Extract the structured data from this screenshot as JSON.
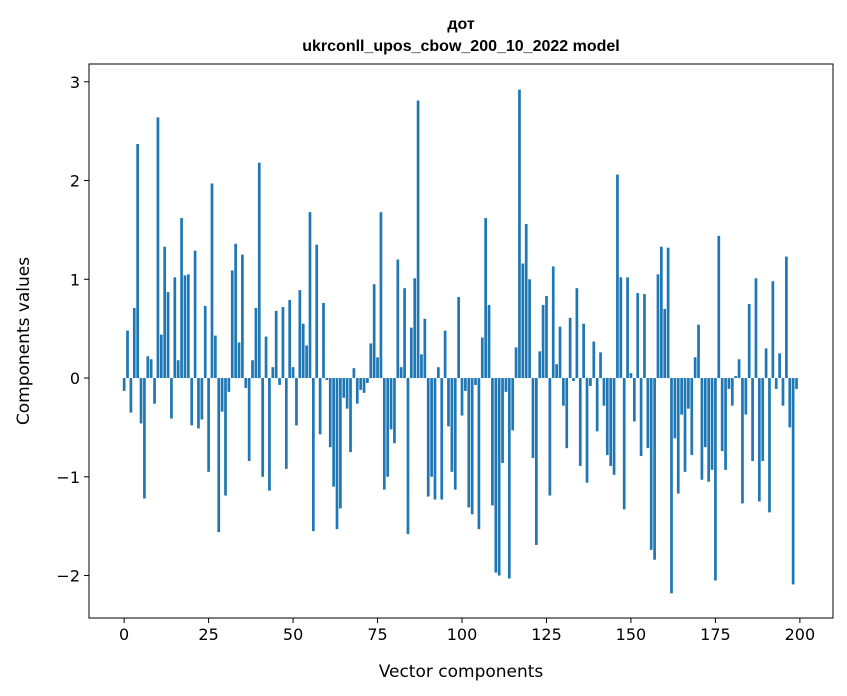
{
  "chart_data": {
    "type": "bar",
    "title_line1": "дот",
    "title_line2": "ukrconll_upos_cbow_200_10_2022 model",
    "xlabel": "Vector components",
    "ylabel": "Components values",
    "xlim": [
      -10.4,
      209.8
    ],
    "ylim": [
      -2.43,
      3.18
    ],
    "xticks": [
      0,
      25,
      50,
      75,
      100,
      125,
      150,
      175,
      200
    ],
    "yticks": [
      -2,
      -1,
      0,
      1,
      2,
      3
    ],
    "ytick_labels": [
      "−2",
      "−1",
      "0",
      "1",
      "2",
      "3"
    ],
    "grid": false,
    "color": "#1f77b4",
    "values": [
      -0.13,
      0.48,
      -0.35,
      0.71,
      2.37,
      -0.46,
      -1.22,
      0.22,
      0.19,
      -0.26,
      2.64,
      0.44,
      1.33,
      0.87,
      -0.41,
      1.02,
      0.18,
      1.62,
      1.04,
      1.05,
      -0.48,
      1.29,
      -0.51,
      -0.42,
      0.73,
      -0.95,
      1.97,
      0.43,
      -1.56,
      -0.34,
      -1.19,
      -0.14,
      1.09,
      1.36,
      0.36,
      1.25,
      -0.1,
      -0.84,
      0.18,
      0.71,
      2.18,
      -1.0,
      0.42,
      -1.14,
      0.11,
      0.68,
      -0.07,
      0.72,
      -0.92,
      0.79,
      0.11,
      -0.48,
      0.89,
      0.55,
      0.33,
      1.68,
      -1.55,
      1.35,
      -0.57,
      0.76,
      -0.02,
      -0.7,
      -1.1,
      -1.53,
      -1.32,
      -0.2,
      -0.31,
      -0.75,
      0.1,
      -0.26,
      -0.12,
      -0.15,
      -0.05,
      0.35,
      0.95,
      0.21,
      1.68,
      -1.13,
      -1.0,
      -0.52,
      -0.66,
      1.2,
      0.11,
      0.91,
      -1.58,
      0.51,
      1.01,
      2.81,
      0.24,
      0.6,
      -1.2,
      -1.0,
      -1.23,
      0.11,
      -1.23,
      0.48,
      -0.49,
      -0.95,
      -1.13,
      0.82,
      -0.38,
      -0.13,
      -1.31,
      -1.38,
      -0.07,
      -1.53,
      0.41,
      1.62,
      0.74,
      -1.29,
      -1.97,
      -2.0,
      -0.86,
      -0.14,
      -2.03,
      -0.53,
      0.31,
      2.92,
      1.16,
      1.56,
      1.0,
      -0.81,
      -1.69,
      0.27,
      0.74,
      0.83,
      -1.19,
      1.13,
      0.14,
      0.52,
      -0.28,
      -0.71,
      0.61,
      -0.03,
      0.91,
      -0.89,
      0.55,
      -1.06,
      -0.08,
      0.37,
      -0.54,
      0.26,
      -0.28,
      -0.78,
      -0.89,
      -0.98,
      2.06,
      1.02,
      -1.33,
      1.02,
      0.05,
      -0.44,
      0.86,
      -0.79,
      0.85,
      -0.71,
      -1.74,
      -1.84,
      1.05,
      1.33,
      0.7,
      1.32,
      -2.18,
      -0.61,
      -1.17,
      -0.37,
      -0.95,
      -0.31,
      -0.78,
      0.21,
      0.54,
      -1.03,
      -0.7,
      -1.05,
      -0.93,
      -2.05,
      1.44,
      -0.74,
      -0.93,
      -0.11,
      -0.28,
      0.02,
      0.19,
      -1.27,
      -0.37,
      0.75,
      -0.84,
      1.01,
      -1.25,
      -0.84,
      0.3,
      -1.36,
      0.98,
      -0.11,
      0.25,
      -0.28,
      1.23,
      -0.5,
      -2.09,
      -0.11
    ]
  }
}
